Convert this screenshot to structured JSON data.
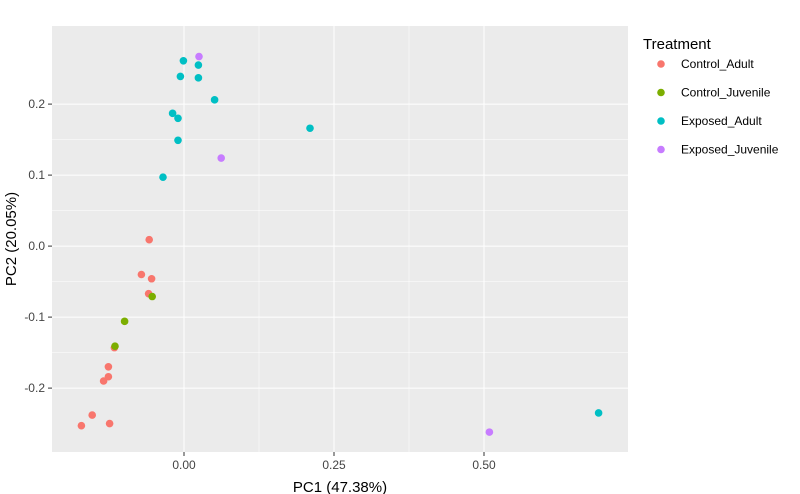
{
  "chart_data": {
    "type": "scatter",
    "xlabel": "PC1 (47.38%)",
    "ylabel": "PC2 (20.05%)",
    "xlim": [
      -0.22,
      0.74
    ],
    "ylim": [
      -0.29,
      0.31
    ],
    "x_ticks": [
      {
        "value": 0.0,
        "label": "0.00"
      },
      {
        "value": 0.25,
        "label": "0.25"
      },
      {
        "value": 0.5,
        "label": "0.50"
      }
    ],
    "y_ticks": [
      {
        "value": -0.2,
        "label": "-0.2"
      },
      {
        "value": -0.1,
        "label": "-0.1"
      },
      {
        "value": 0.0,
        "label": "0.0"
      },
      {
        "value": 0.1,
        "label": "0.1"
      },
      {
        "value": 0.2,
        "label": "0.2"
      }
    ],
    "grid": true,
    "legend": {
      "title": "Treatment",
      "position": "right"
    },
    "series": [
      {
        "name": "Control_Adult",
        "color": "#F8766D",
        "points": [
          {
            "x": -0.058,
            "y": 0.009
          },
          {
            "x": -0.071,
            "y": -0.04
          },
          {
            "x": -0.054,
            "y": -0.046
          },
          {
            "x": -0.059,
            "y": -0.067
          },
          {
            "x": -0.116,
            "y": -0.143
          },
          {
            "x": -0.126,
            "y": -0.17
          },
          {
            "x": -0.126,
            "y": -0.184
          },
          {
            "x": -0.134,
            "y": -0.19
          },
          {
            "x": -0.153,
            "y": -0.238
          },
          {
            "x": -0.124,
            "y": -0.25
          },
          {
            "x": -0.171,
            "y": -0.253
          }
        ]
      },
      {
        "name": "Control_Juvenile",
        "color": "#7CAE00",
        "points": [
          {
            "x": -0.053,
            "y": -0.071
          },
          {
            "x": -0.099,
            "y": -0.106
          },
          {
            "x": -0.115,
            "y": -0.141
          }
        ]
      },
      {
        "name": "Exposed_Adult",
        "color": "#00BFC4",
        "points": [
          {
            "x": -0.001,
            "y": 0.261
          },
          {
            "x": 0.024,
            "y": 0.255
          },
          {
            "x": -0.006,
            "y": 0.239
          },
          {
            "x": 0.024,
            "y": 0.237
          },
          {
            "x": 0.051,
            "y": 0.206
          },
          {
            "x": -0.019,
            "y": 0.187
          },
          {
            "x": -0.01,
            "y": 0.18
          },
          {
            "x": 0.21,
            "y": 0.166
          },
          {
            "x": -0.01,
            "y": 0.149
          },
          {
            "x": -0.035,
            "y": 0.097
          },
          {
            "x": 0.691,
            "y": -0.235
          }
        ]
      },
      {
        "name": "Exposed_Juvenile",
        "color": "#C77CFF",
        "points": [
          {
            "x": 0.025,
            "y": 0.267
          },
          {
            "x": 0.062,
            "y": 0.124
          },
          {
            "x": 0.509,
            "y": -0.262
          }
        ]
      }
    ]
  }
}
